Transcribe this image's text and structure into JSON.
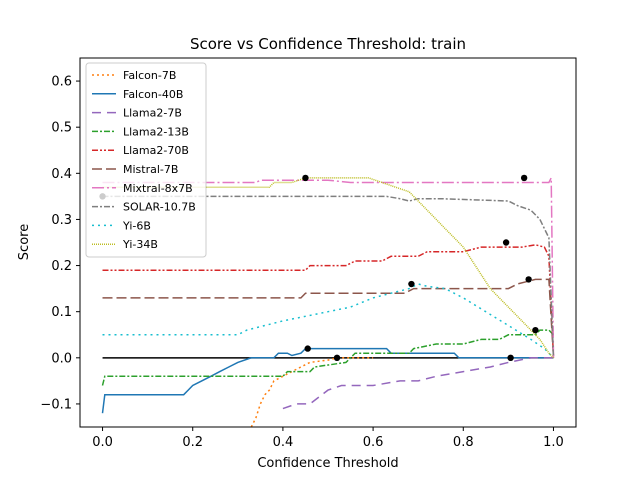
{
  "chart_data": {
    "type": "line",
    "title": "Score vs Confidence Threshold: train",
    "xlabel": "Confidence Threshold",
    "ylabel": "Score",
    "xlim": [
      -0.05,
      1.05
    ],
    "ylim": [
      -0.15,
      0.65
    ],
    "xticks": [
      0.0,
      0.2,
      0.4,
      0.6,
      0.8,
      1.0
    ],
    "xtick_labels": [
      "0.0",
      "0.2",
      "0.4",
      "0.6",
      "0.8",
      "1.0"
    ],
    "yticks": [
      -0.1,
      0.0,
      0.1,
      0.2,
      0.3,
      0.4,
      0.5,
      0.6
    ],
    "ytick_labels": [
      "−0.1",
      "0.0",
      "0.1",
      "0.2",
      "0.3",
      "0.4",
      "0.5",
      "0.6"
    ],
    "grid": false,
    "legend_position": "upper-left",
    "baseline": {
      "y": 0.0,
      "x": [
        0.0,
        1.0
      ],
      "color": "#000000"
    },
    "series": [
      {
        "name": "Falcon-7B",
        "color": "#ff7f0e",
        "dash": "2,3",
        "points": [
          [
            0.33,
            -0.15
          ],
          [
            0.34,
            -0.13
          ],
          [
            0.35,
            -0.1
          ],
          [
            0.36,
            -0.08
          ],
          [
            0.37,
            -0.07
          ],
          [
            0.38,
            -0.05
          ],
          [
            0.4,
            -0.04
          ],
          [
            0.42,
            -0.03
          ],
          [
            0.44,
            -0.02
          ],
          [
            0.46,
            -0.01
          ],
          [
            0.5,
            -0.005
          ],
          [
            0.52,
            0.0
          ],
          [
            0.6,
            0.0
          ]
        ],
        "marker": [
          0.52,
          0.0
        ]
      },
      {
        "name": "Falcon-40B",
        "color": "#1f77b4",
        "dash": "",
        "points": [
          [
            0.0,
            -0.12
          ],
          [
            0.005,
            -0.08
          ],
          [
            0.18,
            -0.08
          ],
          [
            0.19,
            -0.07
          ],
          [
            0.2,
            -0.06
          ],
          [
            0.22,
            -0.05
          ],
          [
            0.24,
            -0.04
          ],
          [
            0.26,
            -0.03
          ],
          [
            0.28,
            -0.02
          ],
          [
            0.3,
            -0.01
          ],
          [
            0.33,
            0.0
          ],
          [
            0.38,
            0.0
          ],
          [
            0.39,
            0.01
          ],
          [
            0.41,
            0.01
          ],
          [
            0.42,
            0.005
          ],
          [
            0.44,
            0.01
          ],
          [
            0.45,
            0.02
          ],
          [
            0.63,
            0.02
          ],
          [
            0.64,
            0.01
          ],
          [
            0.78,
            0.01
          ],
          [
            0.79,
            0.0
          ],
          [
            1.0,
            0.0
          ]
        ],
        "marker": [
          0.455,
          0.02
        ]
      },
      {
        "name": "Llama2-7B",
        "color": "#9467bd",
        "dash": "9,6",
        "points": [
          [
            0.4,
            -0.11
          ],
          [
            0.43,
            -0.1
          ],
          [
            0.46,
            -0.1
          ],
          [
            0.5,
            -0.07
          ],
          [
            0.53,
            -0.06
          ],
          [
            0.6,
            -0.06
          ],
          [
            0.66,
            -0.05
          ],
          [
            0.7,
            -0.05
          ],
          [
            0.74,
            -0.04
          ],
          [
            0.8,
            -0.03
          ],
          [
            0.86,
            -0.02
          ],
          [
            0.9,
            -0.01
          ],
          [
            0.95,
            0.0
          ],
          [
            1.0,
            0.0
          ]
        ],
        "marker": [
          0.905,
          0.0
        ]
      },
      {
        "name": "Llama2-13B",
        "color": "#2ca02c",
        "dash": "6,2,2,2",
        "points": [
          [
            0.0,
            -0.06
          ],
          [
            0.005,
            -0.04
          ],
          [
            0.4,
            -0.04
          ],
          [
            0.41,
            -0.03
          ],
          [
            0.46,
            -0.03
          ],
          [
            0.47,
            -0.02
          ],
          [
            0.54,
            -0.01
          ],
          [
            0.56,
            0.01
          ],
          [
            0.68,
            0.01
          ],
          [
            0.69,
            0.02
          ],
          [
            0.74,
            0.03
          ],
          [
            0.8,
            0.03
          ],
          [
            0.84,
            0.04
          ],
          [
            0.88,
            0.04
          ],
          [
            0.9,
            0.05
          ],
          [
            0.96,
            0.05
          ],
          [
            0.97,
            0.06
          ],
          [
            0.99,
            0.06
          ],
          [
            1.0,
            0.05
          ]
        ],
        "marker": [
          0.96,
          0.06
        ]
      },
      {
        "name": "Llama2-70B",
        "color": "#d62728",
        "dash": "6,2,2,2,2,2",
        "points": [
          [
            0.0,
            0.19
          ],
          [
            0.45,
            0.19
          ],
          [
            0.46,
            0.2
          ],
          [
            0.54,
            0.2
          ],
          [
            0.56,
            0.21
          ],
          [
            0.62,
            0.21
          ],
          [
            0.64,
            0.22
          ],
          [
            0.7,
            0.22
          ],
          [
            0.72,
            0.23
          ],
          [
            0.8,
            0.23
          ],
          [
            0.84,
            0.24
          ],
          [
            0.93,
            0.24
          ],
          [
            0.96,
            0.245
          ],
          [
            0.98,
            0.24
          ],
          [
            0.99,
            0.22
          ],
          [
            1.0,
            0.0
          ]
        ],
        "marker": [
          0.895,
          0.25
        ]
      },
      {
        "name": "Mistral-7B",
        "color": "#8c564b",
        "dash": "10,4",
        "points": [
          [
            0.0,
            0.13
          ],
          [
            0.44,
            0.13
          ],
          [
            0.45,
            0.14
          ],
          [
            0.67,
            0.14
          ],
          [
            0.69,
            0.15
          ],
          [
            0.9,
            0.15
          ],
          [
            0.92,
            0.16
          ],
          [
            0.94,
            0.165
          ],
          [
            0.96,
            0.17
          ],
          [
            0.99,
            0.17
          ],
          [
            1.0,
            0.0
          ]
        ],
        "marker": [
          0.945,
          0.17
        ]
      },
      {
        "name": "Mixtral-8x7B",
        "color": "#e377c2",
        "dash": "12,3,2,3",
        "points": [
          [
            0.0,
            0.38
          ],
          [
            0.34,
            0.38
          ],
          [
            0.35,
            0.385
          ],
          [
            0.5,
            0.385
          ],
          [
            0.55,
            0.38
          ],
          [
            0.99,
            0.38
          ],
          [
            0.995,
            0.39
          ],
          [
            1.0,
            0.0
          ]
        ],
        "marker": [
          0.935,
          0.39
        ]
      },
      {
        "name": "SOLAR-10.7B",
        "color": "#7f7f7f",
        "dash": "6,2,2,2",
        "points": [
          [
            0.0,
            0.35
          ],
          [
            0.63,
            0.35
          ],
          [
            0.66,
            0.345
          ],
          [
            0.68,
            0.34
          ],
          [
            0.7,
            0.345
          ],
          [
            0.75,
            0.345
          ],
          [
            0.9,
            0.34
          ],
          [
            0.92,
            0.33
          ],
          [
            0.95,
            0.32
          ],
          [
            0.97,
            0.3
          ],
          [
            0.99,
            0.26
          ],
          [
            1.0,
            0.0
          ]
        ],
        "marker": [
          0.0,
          0.35
        ]
      },
      {
        "name": "Yi-6B",
        "color": "#17becf",
        "dash": "2,4",
        "points": [
          [
            0.0,
            0.05
          ],
          [
            0.3,
            0.05
          ],
          [
            0.32,
            0.06
          ],
          [
            0.36,
            0.07
          ],
          [
            0.4,
            0.08
          ],
          [
            0.45,
            0.09
          ],
          [
            0.5,
            0.1
          ],
          [
            0.55,
            0.11
          ],
          [
            0.6,
            0.13
          ],
          [
            0.64,
            0.14
          ],
          [
            0.68,
            0.15
          ],
          [
            0.7,
            0.16
          ],
          [
            0.72,
            0.155
          ],
          [
            0.76,
            0.15
          ],
          [
            0.8,
            0.13
          ],
          [
            0.85,
            0.1
          ],
          [
            0.9,
            0.07
          ],
          [
            0.95,
            0.04
          ],
          [
            0.98,
            0.02
          ],
          [
            1.0,
            0.0
          ]
        ],
        "marker": [
          0.685,
          0.16
        ]
      },
      {
        "name": "Yi-34B",
        "color": "#bcbd22",
        "dash": "1,1",
        "points": [
          [
            0.0,
            0.37
          ],
          [
            0.37,
            0.37
          ],
          [
            0.38,
            0.38
          ],
          [
            0.42,
            0.38
          ],
          [
            0.45,
            0.39
          ],
          [
            0.59,
            0.39
          ],
          [
            0.62,
            0.38
          ],
          [
            0.65,
            0.37
          ],
          [
            0.68,
            0.36
          ],
          [
            0.7,
            0.34
          ],
          [
            0.72,
            0.32
          ],
          [
            0.74,
            0.3
          ],
          [
            0.76,
            0.28
          ],
          [
            0.78,
            0.26
          ],
          [
            0.8,
            0.24
          ],
          [
            0.82,
            0.21
          ],
          [
            0.84,
            0.18
          ],
          [
            0.86,
            0.15
          ],
          [
            0.88,
            0.13
          ],
          [
            0.9,
            0.11
          ],
          [
            0.92,
            0.09
          ],
          [
            0.95,
            0.06
          ],
          [
            0.97,
            0.04
          ],
          [
            0.99,
            0.01
          ],
          [
            1.0,
            0.0
          ]
        ],
        "marker": [
          0.45,
          0.39
        ]
      }
    ]
  }
}
